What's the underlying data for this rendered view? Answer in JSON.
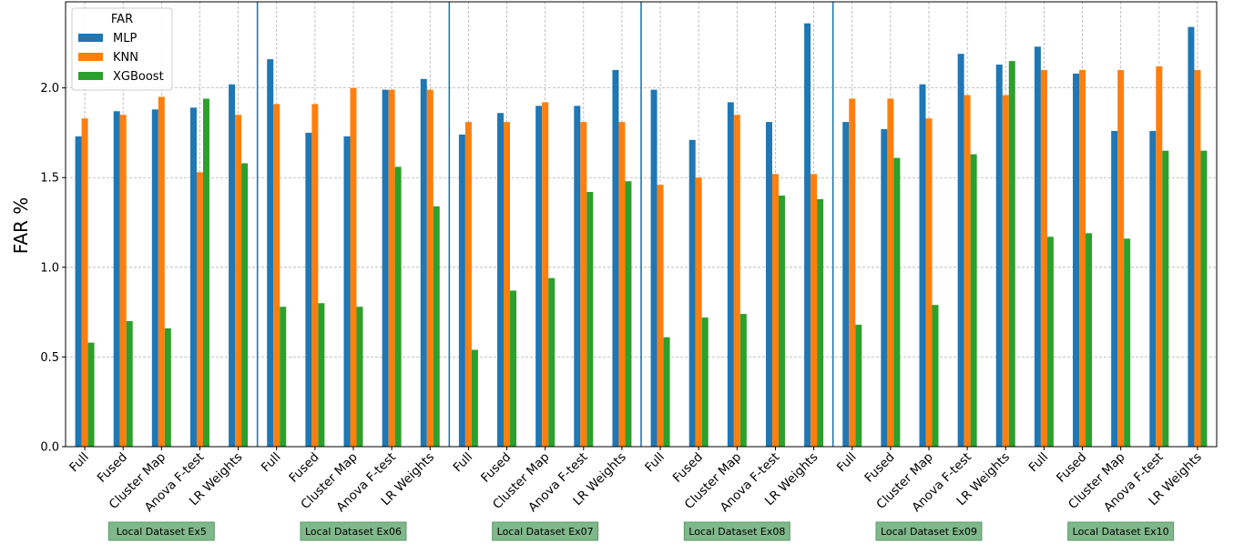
{
  "chart_data": {
    "type": "bar",
    "ylabel": "FAR %",
    "xlabel": "",
    "ylim": [
      0,
      2.48
    ],
    "yticks": [
      "0.0",
      "0.5",
      "1.0",
      "1.5",
      "2.0"
    ],
    "grid": true,
    "legend": {
      "title": "FAR",
      "position": "top-left",
      "entries": [
        "MLP",
        "KNN",
        "XGBoost"
      ]
    },
    "categories": [
      "Full",
      "Fused",
      "Cluster Map",
      "Anova F-test",
      "LR Weights",
      "Full",
      "Fused",
      "Cluster Map",
      "Anova F-test",
      "LR Weights",
      "Full",
      "Fused",
      "Cluster Map",
      "Anova F-test",
      "LR Weights",
      "Full",
      "Fused",
      "Cluster Map",
      "Anova F-test",
      "LR Weights",
      "Full",
      "Fused",
      "Cluster Map",
      "Anova F-test",
      "LR Weights",
      "Full",
      "Fused",
      "Cluster Map",
      "Anova F-test",
      "LR Weights"
    ],
    "series": [
      {
        "name": "MLP",
        "color": "#1f77b4",
        "values": [
          1.73,
          1.87,
          1.88,
          1.89,
          2.02,
          2.16,
          1.75,
          1.73,
          1.99,
          2.05,
          1.74,
          1.86,
          1.9,
          1.9,
          2.1,
          1.99,
          1.71,
          1.92,
          1.81,
          2.36,
          1.81,
          1.77,
          2.02,
          2.19,
          2.13,
          2.23,
          2.08,
          1.76,
          1.76,
          2.34
        ]
      },
      {
        "name": "KNN",
        "color": "#ff7f0e",
        "values": [
          1.83,
          1.85,
          1.95,
          1.53,
          1.85,
          1.91,
          1.91,
          2.0,
          1.99,
          1.99,
          1.81,
          1.81,
          1.92,
          1.81,
          1.81,
          1.46,
          1.5,
          1.85,
          1.52,
          1.52,
          1.94,
          1.94,
          1.83,
          1.96,
          1.96,
          2.1,
          2.1,
          2.1,
          2.12,
          2.1
        ]
      },
      {
        "name": "XGBoost",
        "color": "#2ca02c",
        "values": [
          0.58,
          0.7,
          0.66,
          1.94,
          1.58,
          0.78,
          0.8,
          0.78,
          1.56,
          1.34,
          0.54,
          0.87,
          0.94,
          1.42,
          1.48,
          0.61,
          0.72,
          0.74,
          1.4,
          1.38,
          0.68,
          1.61,
          0.79,
          1.63,
          2.15,
          1.17,
          1.19,
          1.16,
          1.65,
          1.65
        ]
      }
    ],
    "separators_after_index": [
      4,
      9,
      14,
      19
    ],
    "separator_color": "#1f77b4",
    "groups": [
      {
        "label": "Local Dataset Ex5"
      },
      {
        "label": "Local Dataset Ex06"
      },
      {
        "label": "Local Dataset Ex07"
      },
      {
        "label": "Local Dataset Ex08"
      },
      {
        "label": "Local Dataset Ex09"
      },
      {
        "label": "Local Dataset Ex10"
      }
    ],
    "group_box_color": "#7fb88a"
  }
}
